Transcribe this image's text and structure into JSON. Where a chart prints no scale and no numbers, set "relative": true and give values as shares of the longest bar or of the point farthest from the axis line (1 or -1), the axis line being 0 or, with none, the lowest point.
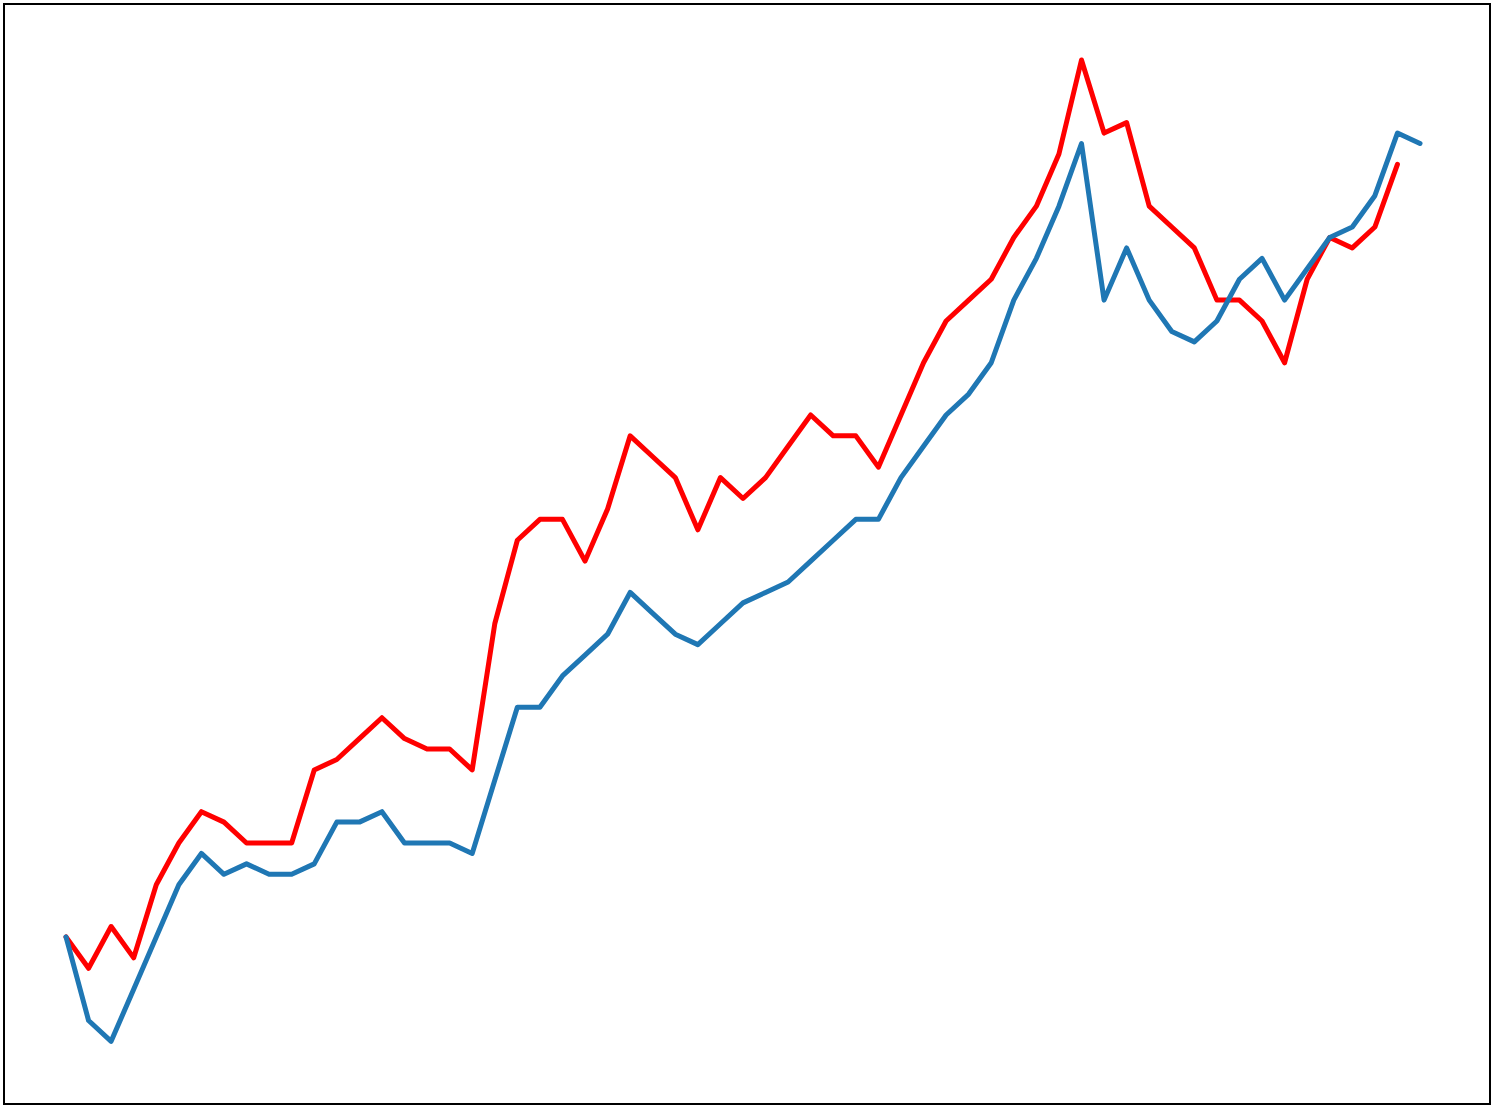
{
  "chart_data": {
    "type": "line",
    "relative": true,
    "categories": [
      null,
      null,
      null,
      null,
      null,
      null,
      null,
      null,
      null,
      null,
      null,
      null,
      null,
      null,
      null,
      null,
      null,
      null,
      null,
      null,
      null,
      null,
      null,
      null,
      null,
      null,
      null,
      null,
      null,
      null,
      null,
      null,
      null,
      null,
      null,
      null,
      null,
      null,
      null,
      null,
      null,
      null,
      null,
      null,
      null,
      null,
      null,
      null,
      null,
      null,
      null,
      null,
      null,
      null,
      null,
      null,
      null,
      null,
      null,
      null,
      null
    ],
    "series": [
      {
        "color": "#ff0000",
        "values": [
          0.16,
          0.13,
          0.17,
          0.14,
          0.21,
          0.25,
          0.28,
          0.27,
          0.25,
          0.25,
          0.25,
          0.32,
          0.33,
          0.35,
          0.37,
          0.35,
          0.34,
          0.34,
          0.32,
          0.46,
          0.54,
          0.56,
          0.56,
          0.52,
          0.57,
          0.64,
          0.62,
          0.6,
          0.55,
          0.6,
          0.58,
          0.6,
          0.63,
          0.66,
          0.64,
          0.64,
          0.61,
          0.66,
          0.71,
          0.75,
          0.77,
          0.79,
          0.83,
          0.86,
          0.91,
          1,
          0.93,
          0.94,
          0.86,
          0.84,
          0.82,
          0.77,
          0.77,
          0.75,
          0.71,
          0.79,
          0.83,
          0.82,
          0.84,
          0.9,
          null
        ]
      },
      {
        "color": "#1f77b4",
        "values": [
          0.16,
          0.08,
          0.06,
          0.11,
          0.16,
          0.21,
          0.24,
          0.22,
          0.23,
          0.22,
          0.22,
          0.23,
          0.27,
          0.27,
          0.28,
          0.25,
          0.25,
          0.25,
          0.24,
          0.31,
          0.38,
          0.38,
          0.41,
          0.43,
          0.45,
          0.49,
          0.47,
          0.45,
          0.44,
          0.46,
          0.48,
          0.49,
          0.5,
          0.52,
          0.54,
          0.56,
          0.56,
          0.6,
          0.63,
          0.66,
          0.68,
          0.71,
          0.77,
          0.81,
          0.86,
          0.92,
          0.77,
          0.82,
          0.77,
          0.74,
          0.73,
          0.75,
          0.79,
          0.81,
          0.77,
          0.8,
          0.83,
          0.84,
          0.87,
          0.93,
          0.92
        ]
      }
    ]
  }
}
